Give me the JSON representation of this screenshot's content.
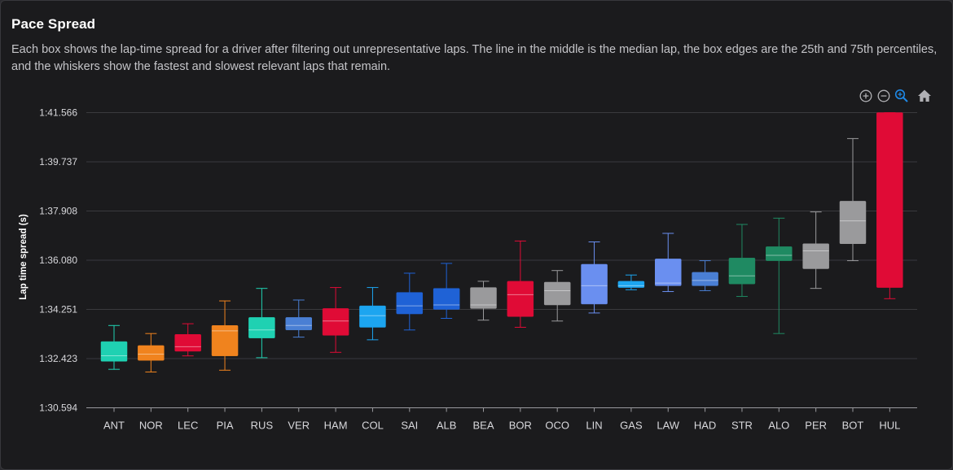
{
  "header": {
    "title": "Pace Spread",
    "description": "Each box shows the lap-time spread for a driver after filtering out unrepresentative laps. The line in the middle is the median lap, the box edges are the 25th and 75th percentiles, and the whiskers show the fastest and slowest relevant laps that remain."
  },
  "toolbar": {
    "icons": [
      "zoom-in-icon",
      "zoom-out-icon",
      "zoom-select-icon",
      "home-icon"
    ],
    "active_color": "#1e88e5"
  },
  "chart_data": {
    "type": "box",
    "title": "",
    "xlabel": "",
    "ylabel": "Lap time spread (s)",
    "ylim": [
      "1:30.594",
      "1:41.566"
    ],
    "y_ticks": [
      "1:30.594",
      "1:32.423",
      "1:34.251",
      "1:36.080",
      "1:37.908",
      "1:39.737",
      "1:41.566"
    ],
    "grid": true,
    "series": [
      {
        "driver": "ANT",
        "color": "#1fd1b2",
        "min": "1:32.024",
        "q1": "1:32.323",
        "median": "1:32.529",
        "q3": "1:33.055",
        "max": "1:33.653"
      },
      {
        "driver": "NOR",
        "color": "#f0831e",
        "min": "1:31.925",
        "q1": "1:32.357",
        "median": "1:32.589",
        "q3": "1:32.908",
        "max": "1:33.354"
      },
      {
        "driver": "LEC",
        "color": "#e00b36",
        "min": "1:32.523",
        "q1": "1:32.696",
        "median": "1:32.863",
        "q3": "1:33.321",
        "max": "1:33.719"
      },
      {
        "driver": "PIA",
        "color": "#f0831e",
        "min": "1:31.991",
        "q1": "1:32.523",
        "median": "1:33.454",
        "q3": "1:33.653",
        "max": "1:34.567"
      },
      {
        "driver": "RUS",
        "color": "#1fd1b2",
        "min": "1:32.456",
        "q1": "1:33.188",
        "median": "1:33.487",
        "q3": "1:33.952",
        "max": "1:35.032"
      },
      {
        "driver": "VER",
        "color": "#4a7fd4",
        "min": "1:33.221",
        "q1": "1:33.487",
        "median": "1:33.653",
        "q3": "1:33.952",
        "max": "1:34.600"
      },
      {
        "driver": "HAM",
        "color": "#e00b36",
        "min": "1:32.656",
        "q1": "1:33.288",
        "median": "1:33.819",
        "q3": "1:34.284",
        "max": "1:35.065"
      },
      {
        "driver": "COL",
        "color": "#1ca5f0",
        "min": "1:33.122",
        "q1": "1:33.587",
        "median": "1:34.018",
        "q3": "1:34.384",
        "max": "1:35.065"
      },
      {
        "driver": "SAI",
        "color": "#1f62d6",
        "min": "1:33.487",
        "q1": "1:34.084",
        "median": "1:34.384",
        "q3": "1:34.882",
        "max": "1:35.597"
      },
      {
        "driver": "ALB",
        "color": "#1f62d6",
        "min": "1:33.919",
        "q1": "1:34.251",
        "median": "1:34.417",
        "q3": "1:35.032",
        "max": "1:35.962"
      },
      {
        "driver": "BEA",
        "color": "#9a9a9c",
        "min": "1:33.852",
        "q1": "1:34.284",
        "median": "1:34.417",
        "q3": "1:35.065",
        "max": "1:35.297"
      },
      {
        "driver": "BOR",
        "color": "#e00b36",
        "min": "1:33.587",
        "q1": "1:33.985",
        "median": "1:34.799",
        "q3": "1:35.297",
        "max": "1:36.794"
      },
      {
        "driver": "OCO",
        "color": "#9a9a9c",
        "min": "1:33.819",
        "q1": "1:34.417",
        "median": "1:34.948",
        "q3": "1:35.264",
        "max": "1:35.696"
      },
      {
        "driver": "LIN",
        "color": "#6a8ff0",
        "min": "1:34.118",
        "q1": "1:34.450",
        "median": "1:35.131",
        "q3": "1:35.929",
        "max": "1:36.760"
      },
      {
        "driver": "GAS",
        "color": "#1ca5f0",
        "min": "1:34.982",
        "q1": "1:35.065",
        "median": "1:35.131",
        "q3": "1:35.297",
        "max": "1:35.530"
      },
      {
        "driver": "LAW",
        "color": "#6a8ff0",
        "min": "1:34.915",
        "q1": "1:35.131",
        "median": "1:35.231",
        "q3": "1:36.128",
        "max": "1:37.078"
      },
      {
        "driver": "HAD",
        "color": "#4a7fd4",
        "min": "1:34.948",
        "q1": "1:35.131",
        "median": "1:35.330",
        "q3": "1:35.630",
        "max": "1:36.062"
      },
      {
        "driver": "STR",
        "color": "#1f8a62",
        "min": "1:34.733",
        "q1": "1:35.198",
        "median": "1:35.497",
        "q3": "1:36.161",
        "max": "1:37.410"
      },
      {
        "driver": "ALO",
        "color": "#1f8a62",
        "min": "1:33.354",
        "q1": "1:36.062",
        "median": "1:36.261",
        "q3": "1:36.583",
        "max": "1:37.643"
      },
      {
        "driver": "PER",
        "color": "#9a9a9c",
        "min": "1:35.032",
        "q1": "1:35.763",
        "median": "1:36.427",
        "q3": "1:36.693",
        "max": "1:37.875"
      },
      {
        "driver": "BOT",
        "color": "#9a9a9c",
        "min": "1:36.062",
        "q1": "1:36.693",
        "median": "1:37.543",
        "q3": "1:38.274",
        "max": "1:40.602"
      },
      {
        "driver": "HUL",
        "color": "#e00b36",
        "min": "1:34.650",
        "q1": "1:35.065",
        "median": "",
        "q3": "1:41.566",
        "max": "1:41.566"
      }
    ]
  }
}
